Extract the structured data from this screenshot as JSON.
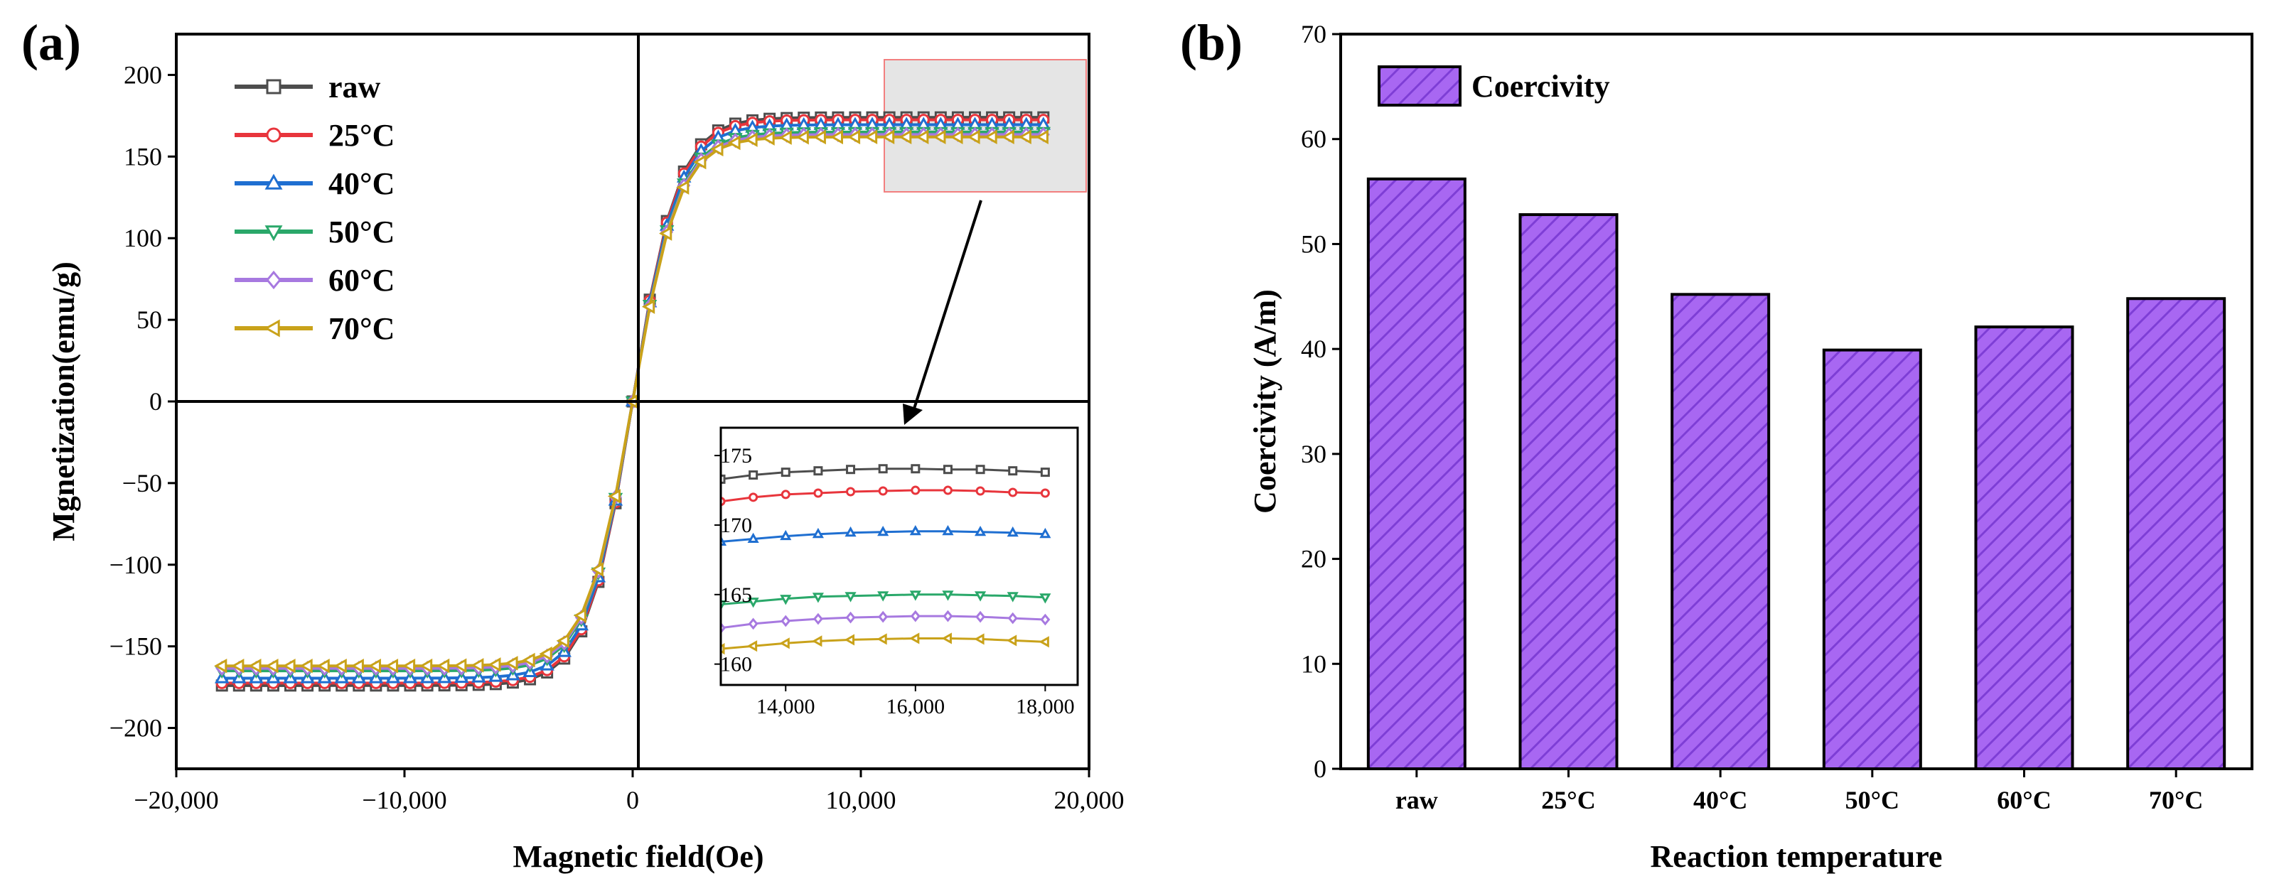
{
  "colors": {
    "raw": "#4d4d4d",
    "c25": "#e8353c",
    "c40": "#1f6fd1",
    "c50": "#2aa86a",
    "c60": "#a779e0",
    "c70": "#c9a21a",
    "bar_fill": "#a867f2",
    "bar_hatch": "#7e3ed6",
    "zoom_box": "#e5e5e5",
    "zoom_border": "#f27f7f"
  },
  "chart_data": [
    {
      "type": "line",
      "panel_label": "(a)",
      "title": "",
      "xlabel": "Magnetic field(Oe)",
      "ylabel": "Mgnetization(emu/g)",
      "xlim": [
        -20000,
        20000
      ],
      "ylim": [
        -225,
        225
      ],
      "xticks": [
        -20000,
        -10000,
        0,
        10000,
        20000
      ],
      "xtick_labels": [
        "−20,000",
        "−10,000",
        "0",
        "10,000",
        "20,000"
      ],
      "yticks": [
        -200,
        -150,
        -100,
        -50,
        0,
        50,
        100,
        150,
        200
      ],
      "ytick_labels": [
        "−200",
        "−150",
        "−100",
        "−50",
        "0",
        "50",
        "100",
        "150",
        "200"
      ],
      "legend_position": "top-left",
      "model": "saturation curve M(H) = Ms * tanh(H / 2000)",
      "x_range": [
        -18000,
        18000
      ],
      "series": [
        {
          "name": "raw",
          "Ms": 174,
          "marker": "square",
          "color_key": "raw"
        },
        {
          "name": "25°C",
          "Ms": 172.5,
          "marker": "circle",
          "color_key": "c25"
        },
        {
          "name": "40°C",
          "Ms": 169.5,
          "marker": "triangle-up",
          "color_key": "c40"
        },
        {
          "name": "50°C",
          "Ms": 165,
          "marker": "triangle-down",
          "color_key": "c50"
        },
        {
          "name": "60°C",
          "Ms": 163.5,
          "marker": "diamond",
          "color_key": "c60"
        },
        {
          "name": "70°C",
          "Ms": 162,
          "marker": "triangle-left",
          "color_key": "c70"
        }
      ],
      "inset": {
        "xlim": [
          13000,
          18500
        ],
        "ylim": [
          158.5,
          177
        ],
        "xticks": [
          14000,
          16000,
          18000
        ],
        "xtick_labels": [
          "14,000",
          "16,000",
          "18,000"
        ],
        "yticks": [
          160,
          165,
          170,
          175
        ],
        "ytick_labels": [
          "160",
          "165",
          "170",
          "175"
        ],
        "x": [
          13000,
          13500,
          14000,
          14500,
          15000,
          15500,
          16000,
          16500,
          17000,
          17500,
          18000
        ],
        "series": [
          {
            "name": "raw",
            "values": [
              173.3,
              173.6,
              173.8,
              173.9,
              174.0,
              174.05,
              174.05,
              174.0,
              174.0,
              173.9,
              173.8
            ]
          },
          {
            "name": "25°C",
            "values": [
              171.7,
              172.0,
              172.2,
              172.3,
              172.4,
              172.45,
              172.5,
              172.5,
              172.45,
              172.35,
              172.3
            ]
          },
          {
            "name": "40°C",
            "values": [
              168.8,
              169.0,
              169.2,
              169.35,
              169.45,
              169.5,
              169.55,
              169.55,
              169.5,
              169.45,
              169.35
            ]
          },
          {
            "name": "50°C",
            "values": [
              164.3,
              164.5,
              164.7,
              164.85,
              164.9,
              164.95,
              165.0,
              165.0,
              164.95,
              164.9,
              164.8
            ]
          },
          {
            "name": "60°C",
            "values": [
              162.6,
              162.9,
              163.1,
              163.25,
              163.35,
              163.4,
              163.45,
              163.45,
              163.4,
              163.3,
              163.2
            ]
          },
          {
            "name": "70°C",
            "values": [
              161.1,
              161.3,
              161.5,
              161.65,
              161.75,
              161.8,
              161.85,
              161.85,
              161.8,
              161.7,
              161.6
            ]
          }
        ]
      }
    },
    {
      "type": "bar",
      "panel_label": "(b)",
      "title": "",
      "xlabel": "Reaction temperature",
      "ylabel": "Coercivity (A/m)",
      "categories": [
        "raw",
        "25°C",
        "40°C",
        "50°C",
        "60°C",
        "70°C"
      ],
      "values": [
        56.2,
        52.8,
        45.2,
        39.9,
        42.1,
        44.8
      ],
      "ylim": [
        0,
        70
      ],
      "yticks": [
        0,
        10,
        20,
        30,
        40,
        50,
        60,
        70
      ],
      "legend": "Coercivity",
      "legend_position": "top-left"
    }
  ]
}
